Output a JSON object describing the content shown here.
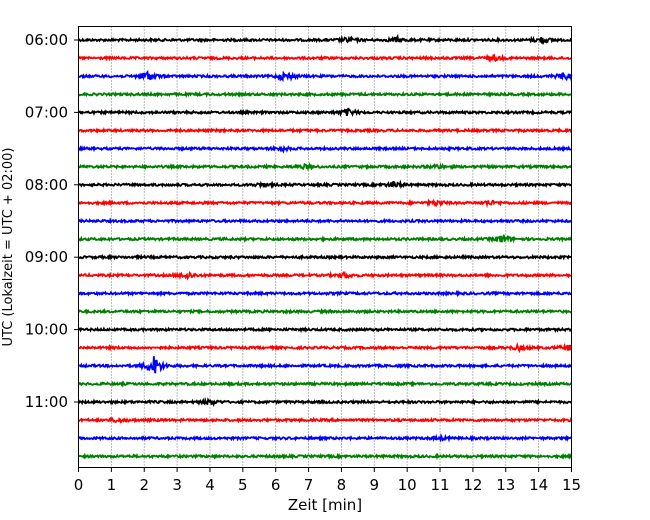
{
  "chart_data": {
    "type": "line",
    "title": "",
    "xlabel": "Zeit  [min]",
    "ylabel": "UTC (Lokalzeit = UTC + 02:00)",
    "xlim": [
      0,
      15
    ],
    "x_ticks": [
      "0",
      "1",
      "2",
      "3",
      "4",
      "5",
      "6",
      "7",
      "8",
      "9",
      "10",
      "11",
      "12",
      "13",
      "14",
      "15"
    ],
    "y_ticks": [
      {
        "label": "06:00",
        "row": 0
      },
      {
        "label": "07:00",
        "row": 4
      },
      {
        "label": "08:00",
        "row": 8
      },
      {
        "label": "09:00",
        "row": 12
      },
      {
        "label": "10:00",
        "row": 16
      },
      {
        "label": "11:00",
        "row": 20
      }
    ],
    "grid": "vertical dotted at each minute",
    "row_colors": [
      "#000000",
      "#ff0000",
      "#0000ff",
      "#008000"
    ],
    "rows": 24,
    "row_minutes": 15,
    "events": [
      {
        "row": 0,
        "t": 8.2,
        "amp": 0.45
      },
      {
        "row": 0,
        "t": 9.7,
        "amp": 0.5
      },
      {
        "row": 0,
        "t": 14.1,
        "amp": 0.6
      },
      {
        "row": 1,
        "t": 12.6,
        "amp": 0.55
      },
      {
        "row": 2,
        "t": 2.1,
        "amp": 1.0
      },
      {
        "row": 2,
        "t": 6.3,
        "amp": 0.85
      },
      {
        "row": 2,
        "t": 14.8,
        "amp": 0.7
      },
      {
        "row": 4,
        "t": 8.2,
        "amp": 0.7
      },
      {
        "row": 6,
        "t": 6.2,
        "amp": 0.35
      },
      {
        "row": 7,
        "t": 6.9,
        "amp": 0.35
      },
      {
        "row": 7,
        "t": 10.9,
        "amp": 0.35
      },
      {
        "row": 8,
        "t": 9.6,
        "amp": 0.6
      },
      {
        "row": 8,
        "t": 5.6,
        "amp": 0.35
      },
      {
        "row": 9,
        "t": 10.9,
        "amp": 0.45
      },
      {
        "row": 9,
        "t": 12.5,
        "amp": 0.45
      },
      {
        "row": 11,
        "t": 12.9,
        "amp": 0.9
      },
      {
        "row": 13,
        "t": 3.3,
        "amp": 0.7
      },
      {
        "row": 13,
        "t": 8.1,
        "amp": 0.5
      },
      {
        "row": 17,
        "t": 13.4,
        "amp": 0.45
      },
      {
        "row": 17,
        "t": 14.9,
        "amp": 0.5
      },
      {
        "row": 18,
        "t": 2.3,
        "amp": 2.0
      },
      {
        "row": 20,
        "t": 4.0,
        "amp": 0.5
      },
      {
        "row": 21,
        "t": 1.2,
        "amp": 0.4
      },
      {
        "row": 22,
        "t": 11.0,
        "amp": 0.3
      }
    ]
  }
}
